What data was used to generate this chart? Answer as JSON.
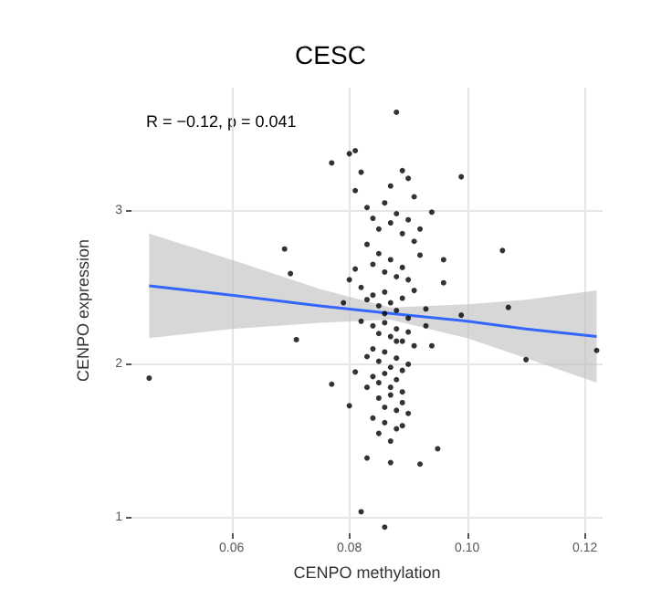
{
  "chart_data": {
    "type": "scatter",
    "title": "CESC",
    "xlabel": "CENPO methylation",
    "ylabel": "CENPO expression",
    "annotations": [
      "R = −0.12, p = 0.041"
    ],
    "xlim": [
      0.043,
      0.123
    ],
    "ylim": [
      0.9,
      3.8
    ],
    "xticks": [
      0.06,
      0.08,
      {
        "value": 0.1,
        "label": "0.10"
      },
      0.12
    ],
    "yticks": [
      1,
      2,
      3
    ],
    "grid": true,
    "marker": "circle",
    "series": [
      {
        "color": "#000000",
        "x": [
          0.046,
          0.069,
          0.07,
          0.071,
          0.077,
          0.08,
          0.082,
          0.086,
          0.083,
          0.087,
          0.092,
          0.095,
          0.106,
          0.107,
          0.11,
          0.122,
          0.099,
          0.096,
          0.096,
          0.094,
          0.091,
          0.088,
          0.077,
          0.081,
          0.08,
          0.099,
          0.082,
          0.089,
          0.09,
          0.087,
          0.081,
          0.083,
          0.084,
          0.085,
          0.086,
          0.087,
          0.088,
          0.089,
          0.09,
          0.091,
          0.092,
          0.083,
          0.084,
          0.085,
          0.086,
          0.087,
          0.088,
          0.089,
          0.09,
          0.091,
          0.082,
          0.083,
          0.084,
          0.085,
          0.086,
          0.087,
          0.088,
          0.089,
          0.09,
          0.093,
          0.082,
          0.084,
          0.085,
          0.086,
          0.087,
          0.088,
          0.089,
          0.09,
          0.091,
          0.083,
          0.084,
          0.085,
          0.086,
          0.087,
          0.088,
          0.089,
          0.09,
          0.084,
          0.085,
          0.086,
          0.087,
          0.088,
          0.089,
          0.081,
          0.085,
          0.086,
          0.087,
          0.088,
          0.089,
          0.084,
          0.086,
          0.088,
          0.09,
          0.085,
          0.087,
          0.089,
          0.08,
          0.092,
          0.093,
          0.079,
          0.081,
          0.094,
          0.083,
          0.086,
          0.088
        ],
        "values": [
          1.91,
          2.75,
          2.59,
          2.16,
          1.87,
          1.73,
          1.04,
          0.94,
          1.39,
          1.36,
          1.35,
          1.45,
          2.74,
          2.37,
          2.03,
          2.09,
          2.32,
          2.68,
          2.53,
          2.99,
          3.09,
          3.64,
          3.31,
          3.39,
          3.37,
          3.22,
          3.25,
          3.26,
          3.21,
          3.16,
          3.13,
          3.02,
          2.95,
          2.88,
          3.05,
          2.92,
          2.98,
          2.85,
          2.94,
          2.8,
          2.71,
          2.78,
          2.65,
          2.72,
          2.6,
          2.68,
          2.57,
          2.63,
          2.55,
          2.48,
          2.5,
          2.42,
          2.45,
          2.38,
          2.47,
          2.4,
          2.35,
          2.43,
          2.3,
          2.36,
          2.28,
          2.25,
          2.2,
          2.27,
          2.18,
          2.23,
          2.15,
          2.21,
          2.12,
          2.05,
          2.1,
          2.02,
          2.08,
          1.98,
          2.04,
          1.96,
          2.0,
          1.92,
          1.88,
          1.94,
          1.85,
          1.9,
          1.82,
          1.95,
          1.78,
          1.72,
          1.8,
          1.7,
          1.75,
          1.65,
          1.62,
          1.58,
          1.68,
          1.55,
          1.5,
          1.6,
          2.55,
          2.88,
          2.25,
          2.4,
          2.62,
          2.12,
          1.85,
          2.33,
          2.15
        ]
      },
      {
        "type": "line",
        "color": "#3366ff",
        "marker": "none",
        "x": [
          0.046,
          0.06,
          0.075,
          0.087,
          0.1,
          0.11,
          0.122
        ],
        "values": [
          2.51,
          2.45,
          2.38,
          2.33,
          2.28,
          2.23,
          2.18
        ],
        "lower": [
          2.17,
          2.23,
          2.27,
          2.29,
          2.17,
          2.04,
          1.88
        ],
        "upper": [
          2.85,
          2.68,
          2.49,
          2.37,
          2.39,
          2.42,
          2.48
        ]
      }
    ]
  }
}
